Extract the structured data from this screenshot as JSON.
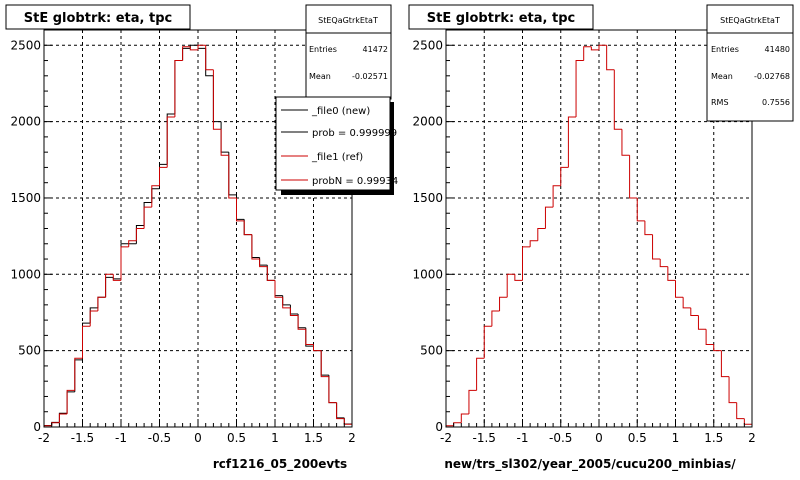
{
  "footer_text": "",
  "colors": {
    "new": "#000000",
    "ref": "#cc0000",
    "grid": "#000000",
    "frame": "#000000"
  },
  "panels": [
    {
      "title": "StE globtrk: eta, tpc",
      "xlabel": "rcf1216_05_200evts",
      "stats": {
        "name": "StEQaGtrkEtaT",
        "rows": [
          {
            "label": "Entries",
            "value": "41472"
          },
          {
            "label": "Mean",
            "value": "-0.02571"
          }
        ]
      },
      "legend": [
        {
          "label": "_file0 (new)",
          "color": "#000000"
        },
        {
          "label": "prob = 0.999999",
          "color": "#000000"
        },
        {
          "label": "_file1 (ref)",
          "color": "#cc0000"
        },
        {
          "label": "probN = 0.99934",
          "color": "#cc0000"
        }
      ]
    },
    {
      "title": "StE globtrk: eta, tpc",
      "xlabel": "new/trs_sl302/year_2005/cucu200_minbias/",
      "stats": {
        "name": "StEQaGtrkEtaT",
        "rows": [
          {
            "label": "Entries",
            "value": "41480"
          },
          {
            "label": "Mean",
            "value": "-0.02768"
          },
          {
            "label": "RMS",
            "value": "0.7556"
          }
        ]
      },
      "legend": []
    }
  ],
  "chart_data": [
    {
      "type": "bar",
      "title": "StE globtrk: eta, tpc",
      "xlabel": "rcf1216_05_200evts",
      "xlim": [
        -2,
        2
      ],
      "ylim": [
        0,
        2600
      ],
      "xticks": [
        "-2",
        "-1.5",
        "-1",
        "-0.5",
        "0",
        "0.5",
        "1",
        "1.5",
        "2"
      ],
      "yticks": [
        "0",
        "500",
        "1000",
        "1500",
        "2000",
        "2500"
      ],
      "grid": true,
      "bin_edges": [
        -2.0,
        -1.9,
        -1.8,
        -1.7,
        -1.6,
        -1.5,
        -1.4,
        -1.3,
        -1.2,
        -1.1,
        -1.0,
        -0.9,
        -0.8,
        -0.7,
        -0.6,
        -0.5,
        -0.4,
        -0.3,
        -0.2,
        -0.1,
        0.0,
        0.1,
        0.2,
        0.3,
        0.4,
        0.5,
        0.6,
        0.7,
        0.8,
        0.9,
        1.0,
        1.1,
        1.2,
        1.3,
        1.4,
        1.5,
        1.6,
        1.7,
        1.8,
        1.9,
        2.0
      ],
      "series": [
        {
          "name": "_file0 (new)",
          "color": "#000000",
          "values": [
            10,
            30,
            90,
            230,
            440,
            680,
            780,
            850,
            980,
            970,
            1200,
            1200,
            1320,
            1470,
            1560,
            1720,
            2050,
            2400,
            2480,
            2500,
            2480,
            2300,
            2000,
            1800,
            1520,
            1360,
            1260,
            1110,
            1060,
            960,
            860,
            800,
            740,
            650,
            530,
            500,
            340,
            160,
            60,
            20
          ]
        },
        {
          "name": "_file1 (ref)",
          "color": "#cc0000",
          "values": [
            8,
            28,
            85,
            240,
            450,
            660,
            760,
            850,
            1000,
            960,
            1180,
            1220,
            1300,
            1440,
            1580,
            1700,
            2030,
            2400,
            2490,
            2470,
            2500,
            2340,
            1950,
            1780,
            1500,
            1350,
            1260,
            1100,
            1050,
            960,
            850,
            780,
            730,
            640,
            540,
            500,
            330,
            160,
            55,
            18
          ]
        }
      ]
    },
    {
      "type": "bar",
      "title": "StE globtrk: eta, tpc",
      "xlabel": "new/trs_sl302/year_2005/cucu200_minbias/",
      "xlim": [
        -2,
        2
      ],
      "ylim": [
        0,
        2600
      ],
      "xticks": [
        "-2",
        "-1.5",
        "-1",
        "-0.5",
        "0",
        "0.5",
        "1",
        "1.5",
        "2"
      ],
      "yticks": [
        "0",
        "500",
        "1000",
        "1500",
        "2000",
        "2500"
      ],
      "grid": true,
      "bin_edges": [
        -2.0,
        -1.9,
        -1.8,
        -1.7,
        -1.6,
        -1.5,
        -1.4,
        -1.3,
        -1.2,
        -1.1,
        -1.0,
        -0.9,
        -0.8,
        -0.7,
        -0.6,
        -0.5,
        -0.4,
        -0.3,
        -0.2,
        -0.1,
        0.0,
        0.1,
        0.2,
        0.3,
        0.4,
        0.5,
        0.6,
        0.7,
        0.8,
        0.9,
        1.0,
        1.1,
        1.2,
        1.3,
        1.4,
        1.5,
        1.6,
        1.7,
        1.8,
        1.9,
        2.0
      ],
      "series": [
        {
          "name": "",
          "color": "#cc0000",
          "values": [
            8,
            28,
            85,
            240,
            450,
            660,
            760,
            850,
            1000,
            960,
            1180,
            1220,
            1300,
            1440,
            1580,
            1700,
            2030,
            2400,
            2490,
            2470,
            2500,
            2340,
            1950,
            1780,
            1500,
            1350,
            1260,
            1100,
            1050,
            960,
            850,
            780,
            730,
            640,
            540,
            500,
            330,
            160,
            55,
            18
          ]
        }
      ]
    }
  ]
}
